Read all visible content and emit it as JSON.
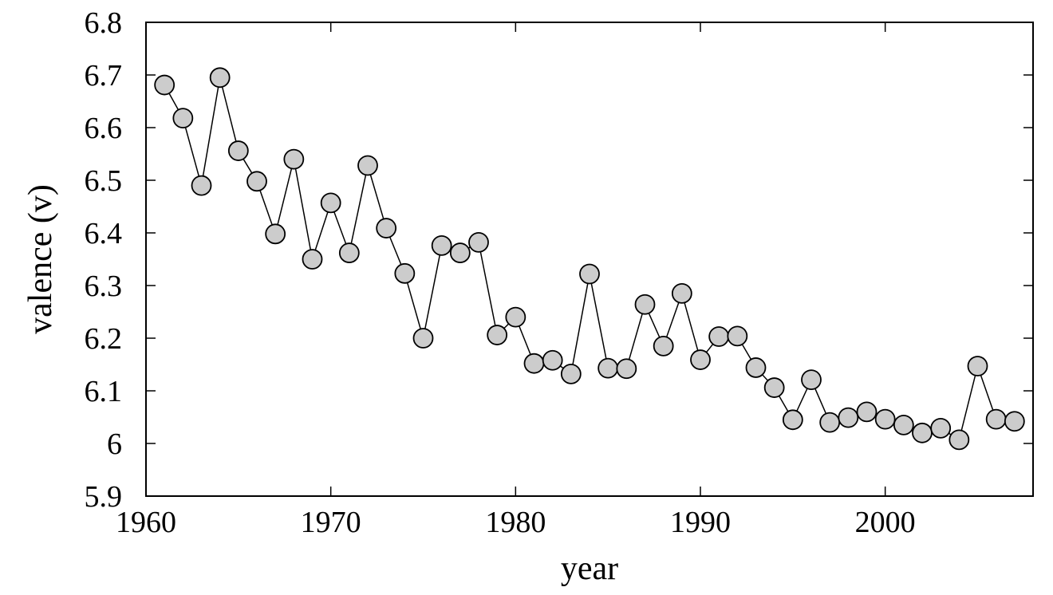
{
  "chart_data": {
    "type": "line",
    "xlabel": "year",
    "ylabel": "valence (v)",
    "xlim": [
      1960,
      2008
    ],
    "ylim": [
      5.9,
      6.8
    ],
    "grid": false,
    "legend": "none",
    "marker": "circle",
    "marker_fill": "#cccccc",
    "line_color": "#000000",
    "x_ticks": [
      1960,
      1970,
      1980,
      1990,
      2000
    ],
    "x_tick_labels": [
      "1960",
      "1970",
      "1980",
      "1990",
      "2000"
    ],
    "y_ticks": [
      5.9,
      6.0,
      6.1,
      6.2,
      6.3,
      6.4,
      6.5,
      6.6,
      6.7,
      6.8
    ],
    "y_tick_labels": [
      "5.9",
      "6",
      "6.1",
      "6.2",
      "6.3",
      "6.4",
      "6.5",
      "6.6",
      "6.7",
      "6.8"
    ],
    "series": [
      {
        "x": [
          1961,
          1962,
          1963,
          1964,
          1965,
          1966,
          1967,
          1968,
          1969,
          1970,
          1971,
          1972,
          1973,
          1974,
          1975,
          1976,
          1977,
          1978,
          1979,
          1980,
          1981,
          1982,
          1983,
          1984,
          1985,
          1986,
          1987,
          1988,
          1989,
          1990,
          1991,
          1992,
          1993,
          1994,
          1995,
          1996,
          1997,
          1998,
          1999,
          2000,
          2001,
          2002,
          2003,
          2004,
          2005,
          2006,
          2007
        ],
        "y": [
          6.681,
          6.618,
          6.49,
          6.695,
          6.556,
          6.498,
          6.398,
          6.54,
          6.35,
          6.457,
          6.362,
          6.528,
          6.409,
          6.323,
          6.2,
          6.376,
          6.362,
          6.382,
          6.206,
          6.24,
          6.152,
          6.158,
          6.132,
          6.322,
          6.143,
          6.142,
          6.264,
          6.185,
          6.285,
          6.159,
          6.203,
          6.204,
          6.144,
          6.106,
          6.045,
          6.121,
          6.04,
          6.049,
          6.06,
          6.046,
          6.035,
          6.02,
          6.029,
          6.007,
          6.147,
          6.046,
          6.042
        ]
      }
    ]
  }
}
